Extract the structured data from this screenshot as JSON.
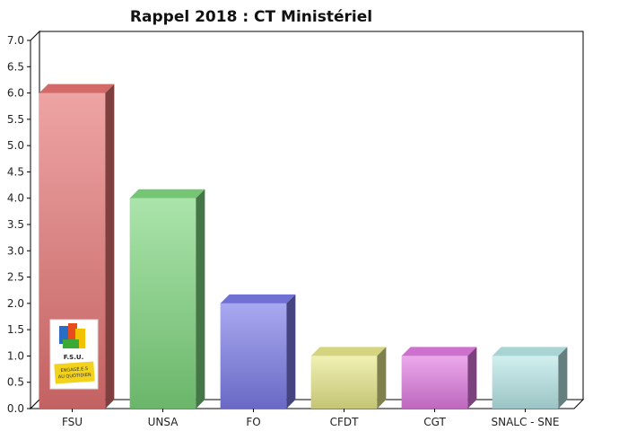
{
  "chart_data": {
    "type": "bar",
    "title": "Rappel 2018 : CT Ministériel",
    "categories": [
      "FSU",
      "UNSA",
      "FO",
      "CFDT",
      "CGT",
      "SNALC - SNE"
    ],
    "values": [
      6,
      4,
      2,
      1,
      1,
      1
    ],
    "ylim": [
      0,
      7
    ],
    "yticks": [
      "0.0",
      "0.5",
      "1.0",
      "1.5",
      "2.0",
      "2.5",
      "3.0",
      "3.5",
      "4.0",
      "4.5",
      "5.0",
      "5.5",
      "6.0",
      "6.5",
      "7.0"
    ],
    "grid": false,
    "colors": [
      "#e57373",
      "#7ed67e",
      "#7b7be8",
      "#e8e88a",
      "#e07ae0",
      "#b8e6e6"
    ]
  },
  "logo": {
    "text_line1": "F.S.U.",
    "text_line2": "ENGAGÉ.E.S",
    "text_line3": "AU QUOTIDIEN"
  }
}
